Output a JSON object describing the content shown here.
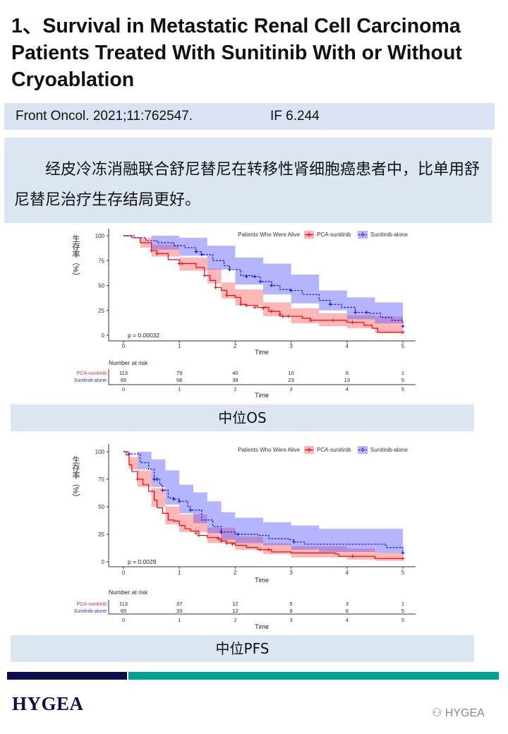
{
  "title": "1、Survival in Metastatic Renal Cell Carcinoma Patients Treated With Sunitinib With or Without Cryoablation",
  "citation": {
    "journal": "Front Oncol. 2021;11:762547.",
    "impact_factor": "IF 6.244"
  },
  "summary": "经皮冷冻消融联合舒尼替尼在转移性肾细胞癌患者中，比单用舒尼替尼治疗生存结局更好。",
  "labels": {
    "os": "中位OS",
    "pfs": "中位PFS"
  },
  "footer": {
    "logo": "HYGEA",
    "watermark": "HYGEA"
  },
  "colors": {
    "red": "#ff0000",
    "blue": "#0000ff",
    "navy": "#0c0c4e",
    "teal": "#00a096",
    "panel": "#dce6f2"
  },
  "chart_data": [
    {
      "type": "line",
      "subtype": "kaplan-meier",
      "ylabel": "生存率（%）",
      "xlabel": "Time",
      "legend_title": "Patients Who Were Alive",
      "legend_position": "top-right",
      "xlim": [
        0,
        5
      ],
      "ylim": [
        0,
        100
      ],
      "xticks": [
        0,
        1,
        2,
        3,
        4,
        5
      ],
      "yticks": [
        0,
        25,
        50,
        75,
        100
      ],
      "p_value": "p = 0.00032",
      "grid": false,
      "risk_table": {
        "title": "Number at risk",
        "xlabel": "Time",
        "rows": [
          {
            "name": "PCA-sunitinib",
            "values": [
              113,
              79,
              40,
              10,
              5,
              1
            ]
          },
          {
            "name": "Sunitinib-alone",
            "values": [
              65,
              58,
              39,
              23,
              13,
              5
            ]
          }
        ]
      },
      "series": [
        {
          "name": "PCA-sunitinib",
          "color": "#ff0000",
          "dashed": false,
          "steps": [
            [
              0,
              100
            ],
            [
              0.15,
              98
            ],
            [
              0.3,
              93
            ],
            [
              0.5,
              85
            ],
            [
              0.6,
              82
            ],
            [
              0.8,
              76
            ],
            [
              1.0,
              72
            ],
            [
              1.3,
              68
            ],
            [
              1.45,
              60
            ],
            [
              1.55,
              55
            ],
            [
              1.65,
              48
            ],
            [
              1.75,
              45
            ],
            [
              1.85,
              40
            ],
            [
              2.0,
              38
            ],
            [
              2.1,
              31
            ],
            [
              2.2,
              30
            ],
            [
              2.4,
              28
            ],
            [
              2.6,
              24
            ],
            [
              2.8,
              19
            ],
            [
              3.2,
              17
            ],
            [
              3.35,
              15
            ],
            [
              4.0,
              13
            ],
            [
              4.3,
              10
            ],
            [
              4.45,
              7
            ],
            [
              4.55,
              3
            ],
            [
              5,
              3
            ]
          ],
          "censored": [
            [
              0.5,
              85
            ],
            [
              0.6,
              82
            ],
            [
              1.0,
              72
            ],
            [
              1.05,
              72
            ],
            [
              1.45,
              60
            ],
            [
              1.65,
              48
            ],
            [
              1.85,
              40
            ],
            [
              2.1,
              31
            ],
            [
              2.2,
              30
            ],
            [
              2.35,
              28
            ],
            [
              2.5,
              27
            ],
            [
              2.65,
              24
            ],
            [
              2.8,
              21
            ],
            [
              2.85,
              19
            ],
            [
              2.95,
              19
            ],
            [
              3.35,
              15
            ],
            [
              3.75,
              15
            ],
            [
              4.1,
              13
            ],
            [
              5,
              3
            ]
          ],
          "ci": [
            [
              0,
              100,
              100
            ],
            [
              0.3,
              88,
              98
            ],
            [
              0.5,
              79,
              91
            ],
            [
              1.0,
              65,
              78
            ],
            [
              1.5,
              52,
              67
            ],
            [
              1.75,
              37,
              53
            ],
            [
              2.0,
              30,
              46
            ],
            [
              2.5,
              19,
              33
            ],
            [
              3.0,
              12,
              27
            ],
            [
              3.5,
              9,
              22
            ],
            [
              4.0,
              7,
              20
            ],
            [
              4.5,
              2,
              19
            ],
            [
              5,
              1,
              19
            ]
          ]
        },
        {
          "name": "Sunitinib-alone",
          "color": "#0000ff",
          "dashed": true,
          "steps": [
            [
              0,
              100
            ],
            [
              0.2,
              98
            ],
            [
              0.4,
              95
            ],
            [
              0.6,
              93
            ],
            [
              0.9,
              90
            ],
            [
              1.1,
              88
            ],
            [
              1.3,
              84
            ],
            [
              1.4,
              81
            ],
            [
              1.6,
              75
            ],
            [
              1.8,
              70
            ],
            [
              1.9,
              66
            ],
            [
              2.1,
              60
            ],
            [
              2.3,
              59
            ],
            [
              2.45,
              54
            ],
            [
              2.65,
              50
            ],
            [
              2.8,
              46
            ],
            [
              3.0,
              45
            ],
            [
              3.2,
              41
            ],
            [
              3.5,
              35
            ],
            [
              3.7,
              31
            ],
            [
              3.9,
              28
            ],
            [
              4.15,
              23
            ],
            [
              4.4,
              22
            ],
            [
              4.6,
              18
            ],
            [
              4.8,
              15
            ],
            [
              5,
              9
            ]
          ],
          "censored": [
            [
              1.3,
              84
            ],
            [
              1.4,
              81
            ],
            [
              1.9,
              66
            ],
            [
              2.2,
              59
            ],
            [
              2.35,
              59
            ],
            [
              2.45,
              54
            ],
            [
              2.65,
              50
            ],
            [
              3.0,
              45
            ],
            [
              3.7,
              31
            ],
            [
              4.15,
              23
            ],
            [
              4.35,
              23
            ],
            [
              5,
              9
            ]
          ],
          "ci": [
            [
              0,
              100,
              100
            ],
            [
              0.5,
              86,
              100
            ],
            [
              1.0,
              80,
              98
            ],
            [
              1.5,
              66,
              90
            ],
            [
              2.0,
              51,
              78
            ],
            [
              2.5,
              41,
              72
            ],
            [
              3.0,
              32,
              61
            ],
            [
              3.5,
              25,
              45
            ],
            [
              4.0,
              16,
              38
            ],
            [
              4.5,
              12,
              33
            ],
            [
              5,
              8,
              29
            ]
          ]
        }
      ]
    },
    {
      "type": "line",
      "subtype": "kaplan-meier",
      "ylabel": "生存率（%）",
      "xlabel": "Time",
      "legend_title": "Patients Who Were Alive",
      "legend_position": "top-right",
      "xlim": [
        0,
        5
      ],
      "ylim": [
        0,
        100
      ],
      "xticks": [
        0,
        1,
        2,
        3,
        4,
        5
      ],
      "yticks": [
        0,
        25,
        50,
        75,
        100
      ],
      "p_value": "p = 0.0029",
      "grid": false,
      "risk_table": {
        "title": "Number at risk",
        "xlabel": "Time",
        "rows": [
          {
            "name": "PCA-sunitinib",
            "values": [
              113,
              37,
              12,
              5,
              3,
              1
            ]
          },
          {
            "name": "Sunitinib-alone",
            "values": [
              65,
              33,
              12,
              9,
              6,
              5
            ]
          }
        ]
      },
      "series": [
        {
          "name": "PCA-sunitinib",
          "color": "#ff0000",
          "dashed": false,
          "steps": [
            [
              0,
              100
            ],
            [
              0.05,
              97
            ],
            [
              0.1,
              88
            ],
            [
              0.15,
              82
            ],
            [
              0.25,
              75
            ],
            [
              0.35,
              70
            ],
            [
              0.45,
              64
            ],
            [
              0.55,
              56
            ],
            [
              0.6,
              49
            ],
            [
              0.7,
              44
            ],
            [
              0.8,
              38
            ],
            [
              0.9,
              37
            ],
            [
              1.0,
              33
            ],
            [
              1.1,
              30
            ],
            [
              1.2,
              28
            ],
            [
              1.35,
              24
            ],
            [
              1.5,
              22
            ],
            [
              1.7,
              21
            ],
            [
              1.75,
              19
            ],
            [
              1.85,
              17
            ],
            [
              2.0,
              15
            ],
            [
              2.2,
              13
            ],
            [
              2.4,
              11
            ],
            [
              2.65,
              9
            ],
            [
              3.0,
              8
            ],
            [
              3.8,
              7
            ],
            [
              3.85,
              5
            ],
            [
              4.5,
              3
            ],
            [
              5,
              3
            ]
          ],
          "censored": [
            [
              0.25,
              75
            ],
            [
              1.3,
              26
            ],
            [
              1.35,
              24
            ],
            [
              1.7,
              21
            ],
            [
              1.75,
              19
            ],
            [
              1.85,
              17
            ],
            [
              1.95,
              16
            ],
            [
              2.45,
              11
            ],
            [
              2.6,
              11
            ],
            [
              4.1,
              5
            ],
            [
              5,
              3
            ]
          ],
          "ci": [
            [
              0,
              100,
              100
            ],
            [
              0.1,
              84,
              95
            ],
            [
              0.25,
              68,
              83
            ],
            [
              0.5,
              50,
              67
            ],
            [
              0.75,
              34,
              50
            ],
            [
              1.0,
              27,
              43
            ],
            [
              1.5,
              17,
              31
            ],
            [
              2.0,
              11,
              23
            ],
            [
              2.5,
              7,
              17
            ],
            [
              3.0,
              4,
              14
            ],
            [
              4.0,
              2,
              12
            ],
            [
              4.5,
              1,
              8
            ],
            [
              5,
              1,
              8
            ]
          ]
        },
        {
          "name": "Sunitinib-alone",
          "color": "#0000ff",
          "dashed": true,
          "steps": [
            [
              0,
              100
            ],
            [
              0.1,
              98
            ],
            [
              0.3,
              90
            ],
            [
              0.45,
              84
            ],
            [
              0.55,
              75
            ],
            [
              0.65,
              70
            ],
            [
              0.7,
              65
            ],
            [
              0.8,
              58
            ],
            [
              0.9,
              57
            ],
            [
              1.0,
              55
            ],
            [
              1.15,
              50
            ],
            [
              1.2,
              47
            ],
            [
              1.4,
              38
            ],
            [
              1.6,
              32
            ],
            [
              1.75,
              27
            ],
            [
              2.0,
              25
            ],
            [
              2.4,
              24
            ],
            [
              2.6,
              21
            ],
            [
              2.95,
              20
            ],
            [
              3.05,
              18
            ],
            [
              3.25,
              16
            ],
            [
              4.6,
              16
            ],
            [
              4.7,
              13
            ],
            [
              4.95,
              13
            ],
            [
              5,
              8
            ]
          ],
          "censored": [
            [
              0.1,
              98
            ],
            [
              0.55,
              75
            ],
            [
              0.6,
              75
            ],
            [
              0.7,
              65
            ],
            [
              0.9,
              57
            ],
            [
              1.0,
              55
            ],
            [
              1.2,
              47
            ],
            [
              1.75,
              27
            ],
            [
              2.05,
              25
            ],
            [
              3.05,
              18
            ],
            [
              5,
              8
            ]
          ],
          "ci": [
            [
              0,
              100,
              100
            ],
            [
              0.25,
              84,
              100
            ],
            [
              0.5,
              68,
              93
            ],
            [
              0.75,
              52,
              83
            ],
            [
              1.0,
              44,
              70
            ],
            [
              1.25,
              35,
              63
            ],
            [
              1.5,
              26,
              55
            ],
            [
              1.75,
              20,
              45
            ],
            [
              2.0,
              17,
              40
            ],
            [
              2.5,
              15,
              36
            ],
            [
              3.0,
              11,
              33
            ],
            [
              3.5,
              9,
              30
            ],
            [
              4.5,
              8,
              30
            ],
            [
              5,
              6,
              28
            ]
          ]
        }
      ]
    }
  ]
}
